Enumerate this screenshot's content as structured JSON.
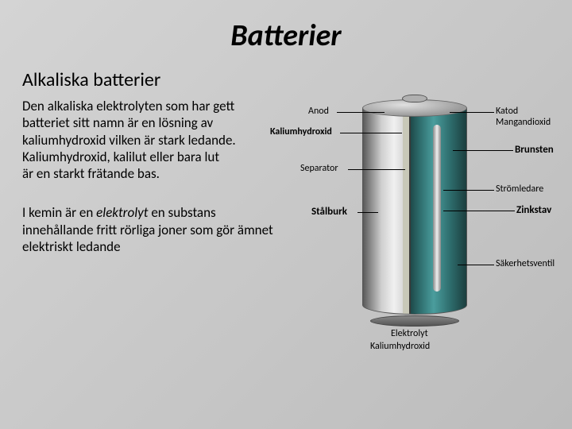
{
  "title": "Batterier",
  "subtitle": "Alkaliska batterier",
  "paragraph1_lines": [
    "Den alkaliska elektrolyten som har gett",
    "batteriet sitt namn är en lösning av",
    "kaliumhydroxid vilken är stark ledande.",
    "Kaliumhydroxid, kalilut eller bara lut",
    "är en starkt frätande bas."
  ],
  "paragraph2_pre": "I kemin är en ",
  "paragraph2_em": "elektrolyt",
  "paragraph2_post": " en substans innehållande fritt rörliga joner som gör ämnet elektriskt ledande",
  "labels": {
    "anod": "Anod",
    "katod": "Katod",
    "mangandioxid": "Mangandioxid",
    "kaliumhydroxid": "Kaliumhydroxid",
    "brunsten": "Brunsten",
    "separator": "Separator",
    "stromledare": "Strömledare",
    "stalburk": "Stålburk",
    "zinkstav": "Zinkstav",
    "sakerhetsventil": "Säkerhetsventil",
    "elektrolyt": "Elektrolyt",
    "kalium2": "Kaliumhydroxid"
  },
  "colors": {
    "bg_start": "#d4d4d4",
    "bg_end": "#bcbcbc",
    "cutaway_teal": "#2d6b6b",
    "metal_light": "#d0d0d0",
    "metal_dark": "#5a5a5a"
  }
}
